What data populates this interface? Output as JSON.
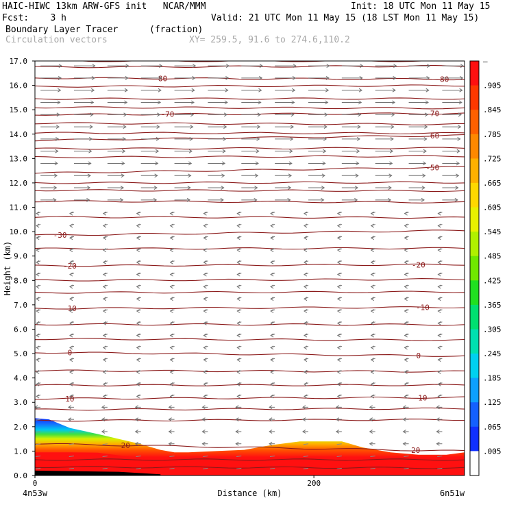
{
  "header": {
    "line1_left": "HAIC-HIWC 13km ARW-GFS init   NCAR/MMM",
    "line1_right": "Init: 18 UTC Mon 11 May 15",
    "line2_left": "Fcst:    3 h",
    "line2_right": "Valid: 21 UTC Mon 11 May 15 (18 LST Mon 11 May 15)",
    "line3_field": "Boundary Layer Tracer",
    "line3_units": "(fraction)",
    "line4_field": "Circulation vectors",
    "line4_xy": "XY= 259.5, 91.6 to 274.6,110.2"
  },
  "chart_data": {
    "type": "heatmap",
    "title": "Boundary Layer Tracer",
    "units": "(fraction)",
    "xlabel": "Distance (km)",
    "ylabel": "Height (km)",
    "xlim": [
      0,
      308
    ],
    "ylim": [
      0.0,
      17.0
    ],
    "x_ticks": [
      {
        "value": 0,
        "label": "0"
      },
      {
        "value": 200,
        "label": "200"
      }
    ],
    "x_end_labels": {
      "left": "4n53w",
      "right": "6n51w"
    },
    "y_ticks": [
      0.0,
      1.0,
      2.0,
      3.0,
      4.0,
      5.0,
      6.0,
      7.0,
      8.0,
      9.0,
      10.0,
      11.0,
      12.0,
      13.0,
      14.0,
      15.0,
      16.0,
      17.0
    ],
    "y_tick_labels": [
      "0.0",
      "1.0",
      "2.0",
      "3.0",
      "4.0",
      "5.0",
      "6.0",
      "7.0",
      "8.0",
      "9.0",
      "10.0",
      "11.0",
      "12.0",
      "13.0",
      "14.0",
      "15.0",
      "16.0",
      "17.0"
    ],
    "colorbar": {
      "labels": [
        "–",
        ".905",
        ".845",
        ".785",
        ".725",
        ".665",
        ".605",
        ".545",
        ".485",
        ".425",
        ".365",
        ".305",
        ".245",
        ".185",
        ".125",
        ".065",
        ".005"
      ],
      "colors": [
        "#ffffff",
        "#1030ff",
        "#1460ff",
        "#0ea0ff",
        "#00d0f0",
        "#00e0b0",
        "#00e070",
        "#20e020",
        "#70e800",
        "#b0f000",
        "#e8f000",
        "#ffd800",
        "#ffb000",
        "#ff8800",
        "#ff6000",
        "#ff3800",
        "#ff1010"
      ]
    },
    "boundary_layer_top_km": [
      {
        "x": 0,
        "h": 2.35
      },
      {
        "x": 10,
        "h": 2.3
      },
      {
        "x": 25,
        "h": 1.95
      },
      {
        "x": 45,
        "h": 1.7
      },
      {
        "x": 60,
        "h": 1.5
      },
      {
        "x": 75,
        "h": 1.3
      },
      {
        "x": 90,
        "h": 1.05
      },
      {
        "x": 100,
        "h": 0.95
      },
      {
        "x": 110,
        "h": 0.95
      },
      {
        "x": 130,
        "h": 1.0
      },
      {
        "x": 150,
        "h": 1.05
      },
      {
        "x": 170,
        "h": 1.25
      },
      {
        "x": 190,
        "h": 1.4
      },
      {
        "x": 220,
        "h": 1.4
      },
      {
        "x": 235,
        "h": 1.15
      },
      {
        "x": 255,
        "h": 0.95
      },
      {
        "x": 275,
        "h": 0.85
      },
      {
        "x": 295,
        "h": 0.85
      },
      {
        "x": 308,
        "h": 0.95
      }
    ],
    "temperature_contours": [
      {
        "label": "-80",
        "h0": 16.3,
        "h1": 16.25,
        "label_x": [
          90,
          292
        ]
      },
      {
        "label": "-70",
        "h0": 14.8,
        "h1": 14.85,
        "label_x": [
          95,
          285
        ]
      },
      {
        "label": "-60",
        "h0": 13.75,
        "h1": 13.95,
        "label_x": [
          285
        ]
      },
      {
        "label": "-50",
        "h0": 12.4,
        "h1": 12.65,
        "label_x": [
          285
        ]
      },
      {
        "label": "-30",
        "h0": 9.85,
        "h1": 10.05,
        "label_x": [
          18
        ]
      },
      {
        "label": "-20",
        "h0": 8.6,
        "h1": 8.65,
        "label_x": [
          25,
          275
        ]
      },
      {
        "label": "-10",
        "h0": 6.85,
        "h1": 6.9,
        "label_x": [
          25,
          278
        ]
      },
      {
        "label": "0",
        "h0": 5.05,
        "h1": 4.9,
        "label_x": [
          25,
          275
        ]
      },
      {
        "label": "10",
        "h0": 3.15,
        "h1": 3.2,
        "label_x": [
          25,
          278
        ]
      },
      {
        "label": "20",
        "h0": 1.3,
        "h1": 1.0,
        "label_x": [
          65,
          273
        ]
      }
    ],
    "unlabeled_contour_km": [
      17.0,
      16.75,
      15.95,
      15.45,
      15.1,
      14.45,
      14.05,
      13.4,
      13.05,
      12.0,
      11.7,
      11.25,
      10.6,
      9.3,
      8.0,
      7.5,
      6.2,
      5.6,
      4.3,
      3.7,
      2.7,
      2.25,
      0.65,
      0.35
    ],
    "vectors": {
      "u_upper": 1.0,
      "u_mid": -0.2,
      "u_lower": -0.55
    }
  }
}
